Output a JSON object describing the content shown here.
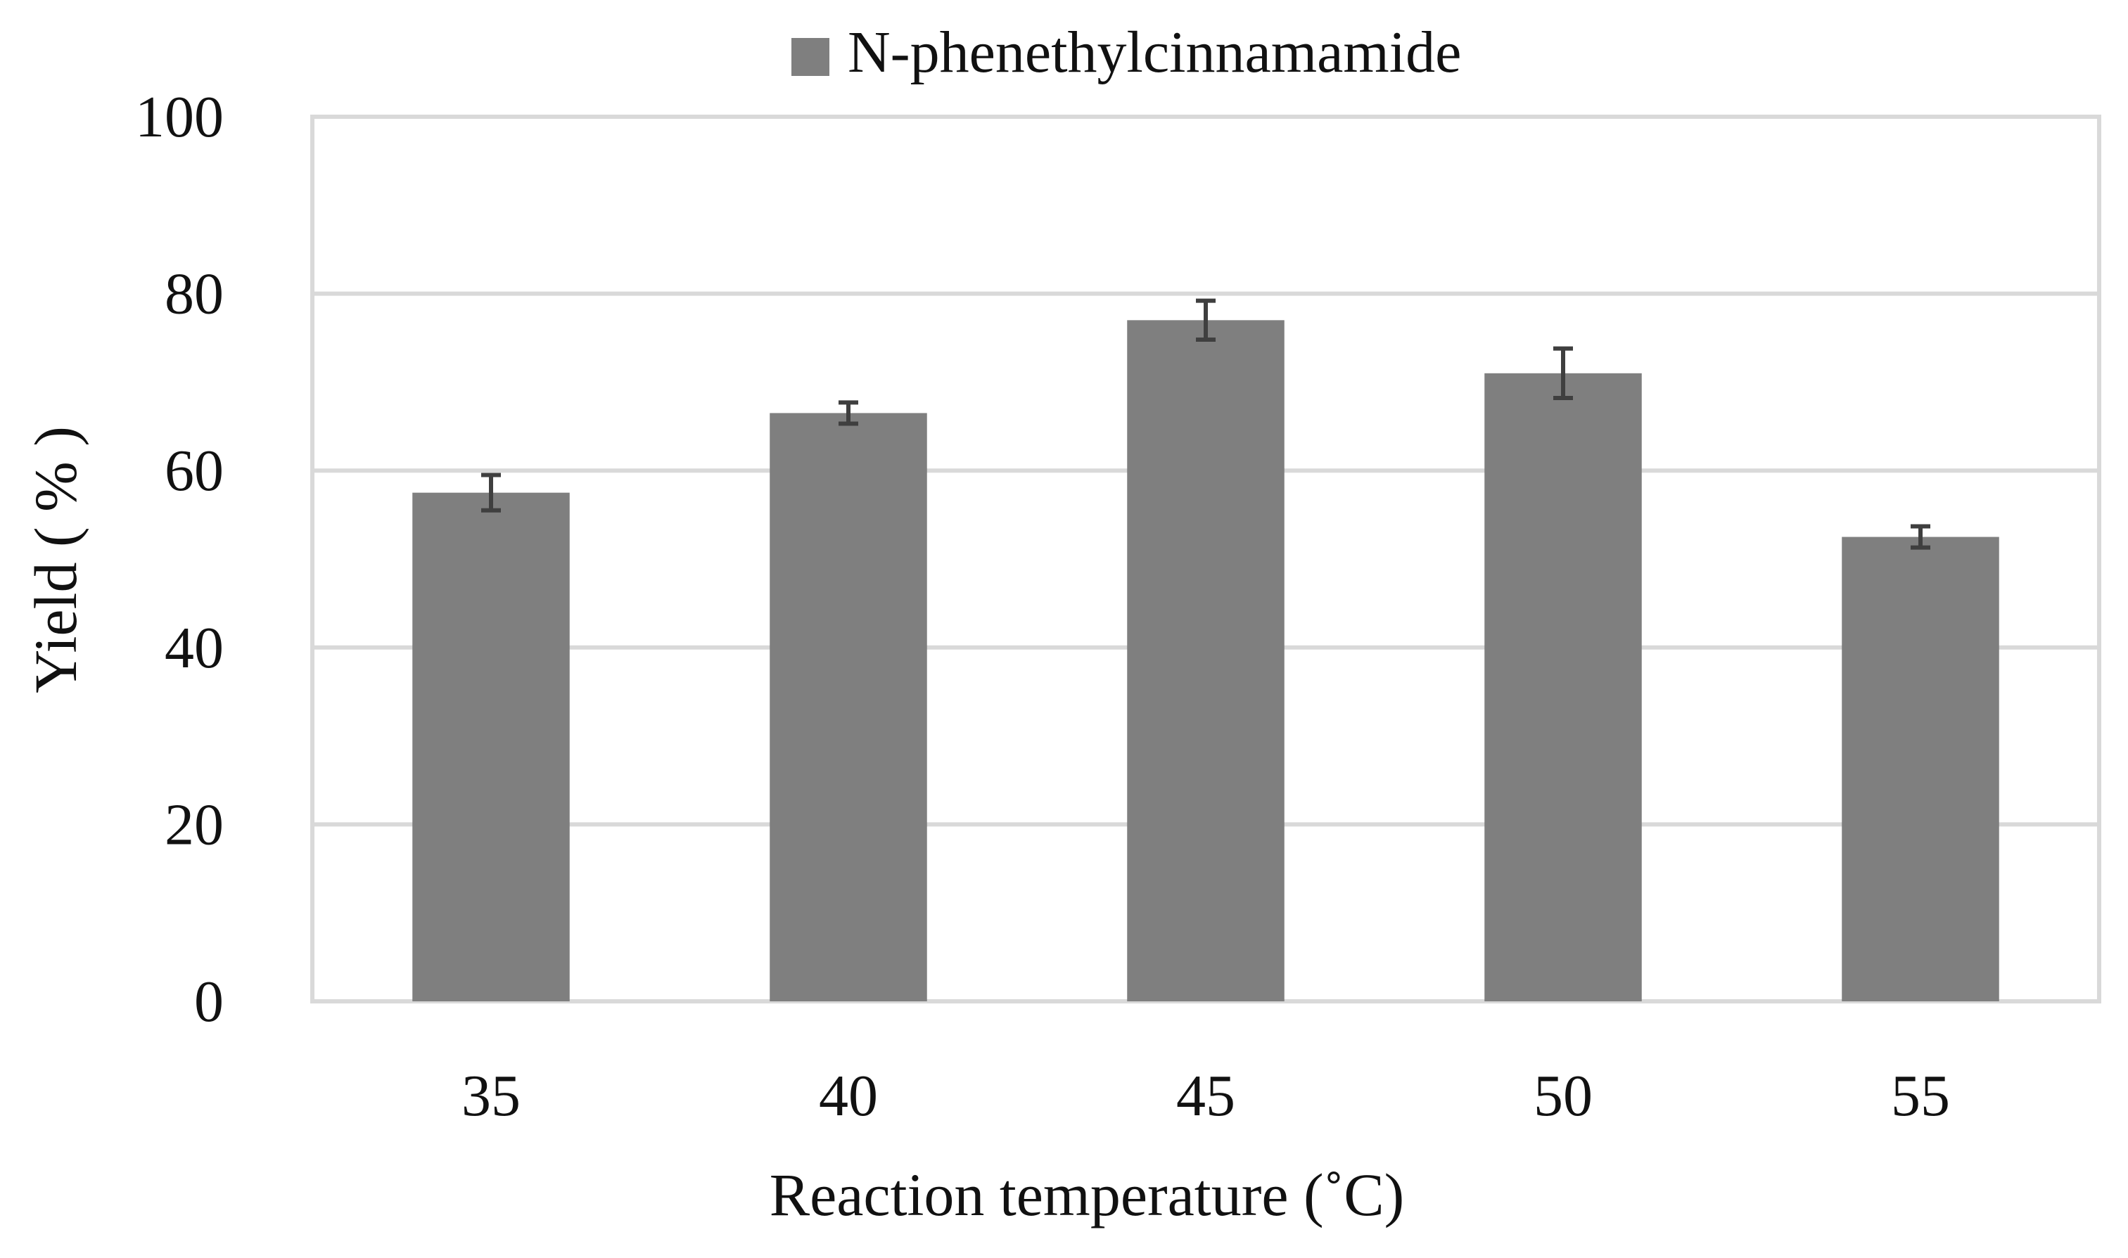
{
  "chart_data": {
    "type": "bar",
    "title": "",
    "xlabel": "Reaction temperature (˚C)",
    "ylabel": "Yield ( % )",
    "categories": [
      "35",
      "40",
      "45",
      "50",
      "55"
    ],
    "series": [
      {
        "name": "N-phenethylcinnamamide",
        "values": [
          57.5,
          66.5,
          77.0,
          71.0,
          52.5
        ],
        "error": [
          2.0,
          1.2,
          2.2,
          2.8,
          1.2
        ]
      }
    ],
    "ylim": [
      0,
      100
    ],
    "yticks": [
      0,
      20,
      40,
      60,
      80,
      100
    ],
    "ytick_labels": [
      "0",
      "20",
      "40",
      "60",
      "80",
      "100"
    ],
    "grid": true,
    "legend_position": "top-center",
    "colors": {
      "bar": "#7f7f7f",
      "error_bar": "#3f3f3f",
      "grid": "#d9d9d9",
      "frame": "#d9d9d9",
      "text": "#111111"
    }
  }
}
